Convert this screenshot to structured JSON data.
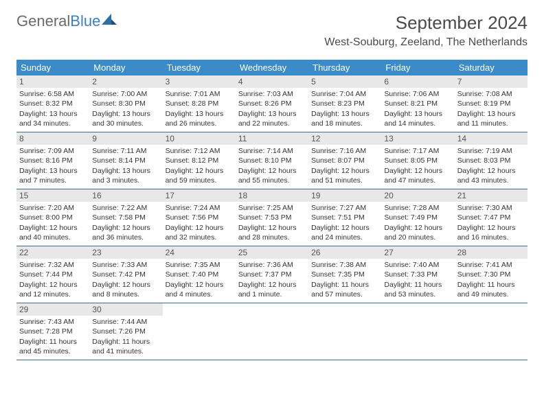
{
  "logo": {
    "text1": "General",
    "text2": "Blue"
  },
  "title": "September 2024",
  "location": "West-Souburg, Zeeland, The Netherlands",
  "colors": {
    "header_bg": "#3b8bc9",
    "header_text": "#ffffff",
    "row_border": "#3b6b8f",
    "daynum_bg": "#e8e8e8",
    "text": "#333333",
    "logo_blue": "#3b7fc4",
    "logo_gray": "#6a6a6a"
  },
  "days_of_week": [
    "Sunday",
    "Monday",
    "Tuesday",
    "Wednesday",
    "Thursday",
    "Friday",
    "Saturday"
  ],
  "weeks": [
    [
      {
        "n": "1",
        "sunrise": "Sunrise: 6:58 AM",
        "sunset": "Sunset: 8:32 PM",
        "daylight": "Daylight: 13 hours and 34 minutes."
      },
      {
        "n": "2",
        "sunrise": "Sunrise: 7:00 AM",
        "sunset": "Sunset: 8:30 PM",
        "daylight": "Daylight: 13 hours and 30 minutes."
      },
      {
        "n": "3",
        "sunrise": "Sunrise: 7:01 AM",
        "sunset": "Sunset: 8:28 PM",
        "daylight": "Daylight: 13 hours and 26 minutes."
      },
      {
        "n": "4",
        "sunrise": "Sunrise: 7:03 AM",
        "sunset": "Sunset: 8:26 PM",
        "daylight": "Daylight: 13 hours and 22 minutes."
      },
      {
        "n": "5",
        "sunrise": "Sunrise: 7:04 AM",
        "sunset": "Sunset: 8:23 PM",
        "daylight": "Daylight: 13 hours and 18 minutes."
      },
      {
        "n": "6",
        "sunrise": "Sunrise: 7:06 AM",
        "sunset": "Sunset: 8:21 PM",
        "daylight": "Daylight: 13 hours and 14 minutes."
      },
      {
        "n": "7",
        "sunrise": "Sunrise: 7:08 AM",
        "sunset": "Sunset: 8:19 PM",
        "daylight": "Daylight: 13 hours and 11 minutes."
      }
    ],
    [
      {
        "n": "8",
        "sunrise": "Sunrise: 7:09 AM",
        "sunset": "Sunset: 8:16 PM",
        "daylight": "Daylight: 13 hours and 7 minutes."
      },
      {
        "n": "9",
        "sunrise": "Sunrise: 7:11 AM",
        "sunset": "Sunset: 8:14 PM",
        "daylight": "Daylight: 13 hours and 3 minutes."
      },
      {
        "n": "10",
        "sunrise": "Sunrise: 7:12 AM",
        "sunset": "Sunset: 8:12 PM",
        "daylight": "Daylight: 12 hours and 59 minutes."
      },
      {
        "n": "11",
        "sunrise": "Sunrise: 7:14 AM",
        "sunset": "Sunset: 8:10 PM",
        "daylight": "Daylight: 12 hours and 55 minutes."
      },
      {
        "n": "12",
        "sunrise": "Sunrise: 7:16 AM",
        "sunset": "Sunset: 8:07 PM",
        "daylight": "Daylight: 12 hours and 51 minutes."
      },
      {
        "n": "13",
        "sunrise": "Sunrise: 7:17 AM",
        "sunset": "Sunset: 8:05 PM",
        "daylight": "Daylight: 12 hours and 47 minutes."
      },
      {
        "n": "14",
        "sunrise": "Sunrise: 7:19 AM",
        "sunset": "Sunset: 8:03 PM",
        "daylight": "Daylight: 12 hours and 43 minutes."
      }
    ],
    [
      {
        "n": "15",
        "sunrise": "Sunrise: 7:20 AM",
        "sunset": "Sunset: 8:00 PM",
        "daylight": "Daylight: 12 hours and 40 minutes."
      },
      {
        "n": "16",
        "sunrise": "Sunrise: 7:22 AM",
        "sunset": "Sunset: 7:58 PM",
        "daylight": "Daylight: 12 hours and 36 minutes."
      },
      {
        "n": "17",
        "sunrise": "Sunrise: 7:24 AM",
        "sunset": "Sunset: 7:56 PM",
        "daylight": "Daylight: 12 hours and 32 minutes."
      },
      {
        "n": "18",
        "sunrise": "Sunrise: 7:25 AM",
        "sunset": "Sunset: 7:53 PM",
        "daylight": "Daylight: 12 hours and 28 minutes."
      },
      {
        "n": "19",
        "sunrise": "Sunrise: 7:27 AM",
        "sunset": "Sunset: 7:51 PM",
        "daylight": "Daylight: 12 hours and 24 minutes."
      },
      {
        "n": "20",
        "sunrise": "Sunrise: 7:28 AM",
        "sunset": "Sunset: 7:49 PM",
        "daylight": "Daylight: 12 hours and 20 minutes."
      },
      {
        "n": "21",
        "sunrise": "Sunrise: 7:30 AM",
        "sunset": "Sunset: 7:47 PM",
        "daylight": "Daylight: 12 hours and 16 minutes."
      }
    ],
    [
      {
        "n": "22",
        "sunrise": "Sunrise: 7:32 AM",
        "sunset": "Sunset: 7:44 PM",
        "daylight": "Daylight: 12 hours and 12 minutes."
      },
      {
        "n": "23",
        "sunrise": "Sunrise: 7:33 AM",
        "sunset": "Sunset: 7:42 PM",
        "daylight": "Daylight: 12 hours and 8 minutes."
      },
      {
        "n": "24",
        "sunrise": "Sunrise: 7:35 AM",
        "sunset": "Sunset: 7:40 PM",
        "daylight": "Daylight: 12 hours and 4 minutes."
      },
      {
        "n": "25",
        "sunrise": "Sunrise: 7:36 AM",
        "sunset": "Sunset: 7:37 PM",
        "daylight": "Daylight: 12 hours and 1 minute."
      },
      {
        "n": "26",
        "sunrise": "Sunrise: 7:38 AM",
        "sunset": "Sunset: 7:35 PM",
        "daylight": "Daylight: 11 hours and 57 minutes."
      },
      {
        "n": "27",
        "sunrise": "Sunrise: 7:40 AM",
        "sunset": "Sunset: 7:33 PM",
        "daylight": "Daylight: 11 hours and 53 minutes."
      },
      {
        "n": "28",
        "sunrise": "Sunrise: 7:41 AM",
        "sunset": "Sunset: 7:30 PM",
        "daylight": "Daylight: 11 hours and 49 minutes."
      }
    ],
    [
      {
        "n": "29",
        "sunrise": "Sunrise: 7:43 AM",
        "sunset": "Sunset: 7:28 PM",
        "daylight": "Daylight: 11 hours and 45 minutes."
      },
      {
        "n": "30",
        "sunrise": "Sunrise: 7:44 AM",
        "sunset": "Sunset: 7:26 PM",
        "daylight": "Daylight: 11 hours and 41 minutes."
      },
      null,
      null,
      null,
      null,
      null
    ]
  ]
}
